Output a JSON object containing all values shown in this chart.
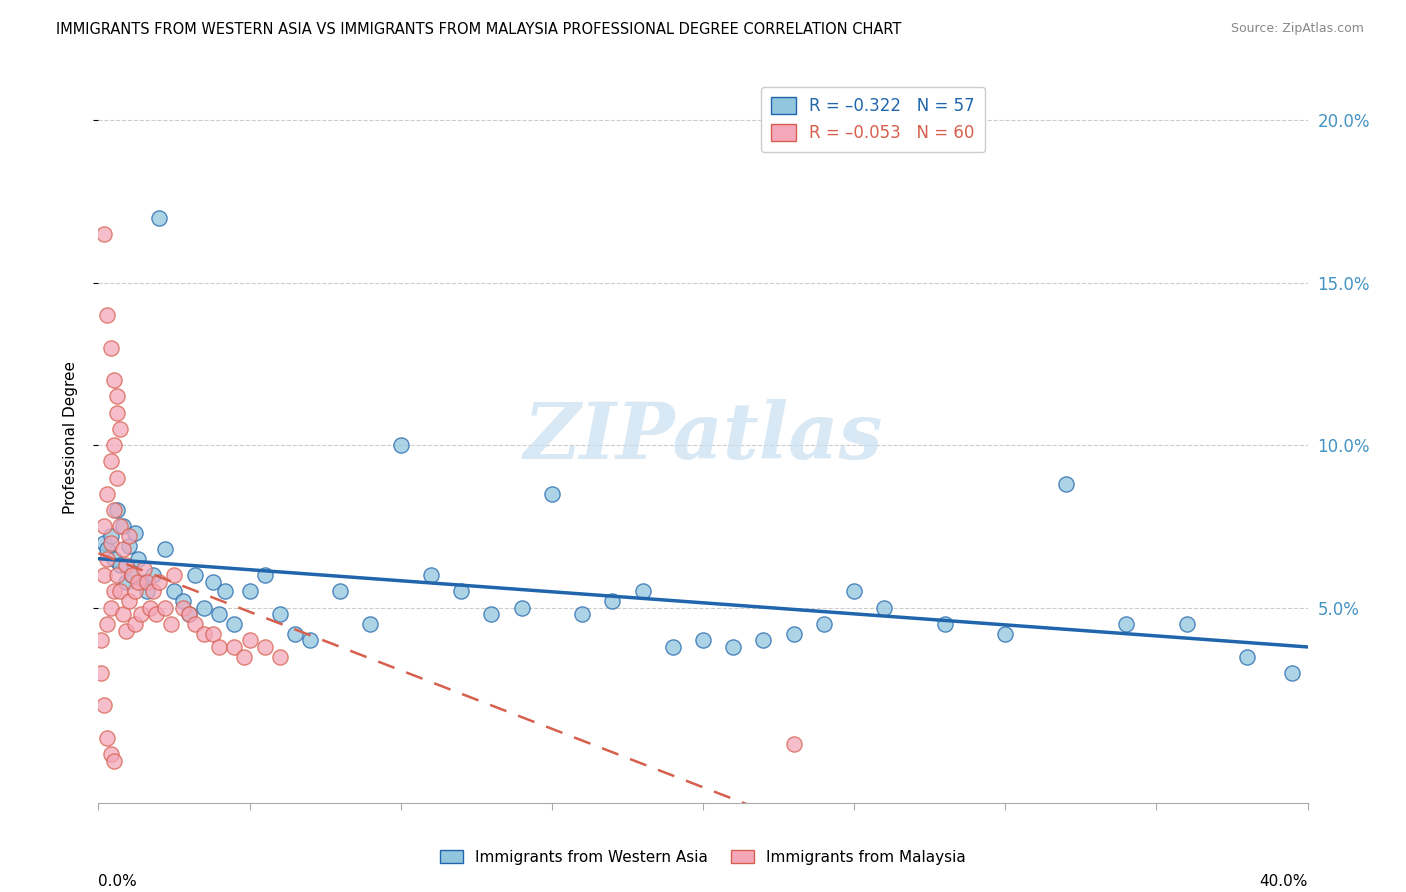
{
  "title": "IMMIGRANTS FROM WESTERN ASIA VS IMMIGRANTS FROM MALAYSIA PROFESSIONAL DEGREE CORRELATION CHART",
  "source": "Source: ZipAtlas.com",
  "ylabel": "Professional Degree",
  "right_yticks": [
    "5.0%",
    "10.0%",
    "15.0%",
    "20.0%"
  ],
  "right_ytick_vals": [
    0.05,
    0.1,
    0.15,
    0.2
  ],
  "legend_label1": "Immigrants from Western Asia",
  "legend_label2": "Immigrants from Malaysia",
  "color_blue": "#92c5de",
  "color_pink": "#f4a7b9",
  "color_blue_dark": "#2166ac",
  "color_pink_dark": "#d6604d",
  "xlim": [
    0.0,
    0.4
  ],
  "ylim": [
    -0.01,
    0.215
  ],
  "watermark": "ZIPatlas",
  "background_color": "#ffffff",
  "western_asia_x": [
    0.002,
    0.003,
    0.004,
    0.005,
    0.006,
    0.007,
    0.008,
    0.009,
    0.01,
    0.011,
    0.012,
    0.013,
    0.015,
    0.016,
    0.018,
    0.02,
    0.022,
    0.025,
    0.028,
    0.03,
    0.032,
    0.035,
    0.038,
    0.04,
    0.042,
    0.045,
    0.05,
    0.055,
    0.06,
    0.065,
    0.07,
    0.08,
    0.09,
    0.1,
    0.11,
    0.12,
    0.13,
    0.14,
    0.15,
    0.16,
    0.17,
    0.18,
    0.19,
    0.2,
    0.21,
    0.22,
    0.23,
    0.24,
    0.25,
    0.26,
    0.28,
    0.3,
    0.32,
    0.34,
    0.36,
    0.38,
    0.395
  ],
  "western_asia_y": [
    0.07,
    0.068,
    0.072,
    0.065,
    0.08,
    0.063,
    0.075,
    0.058,
    0.069,
    0.06,
    0.073,
    0.065,
    0.058,
    0.055,
    0.06,
    0.17,
    0.068,
    0.055,
    0.052,
    0.048,
    0.06,
    0.05,
    0.058,
    0.048,
    0.055,
    0.045,
    0.055,
    0.06,
    0.048,
    0.042,
    0.04,
    0.055,
    0.045,
    0.1,
    0.06,
    0.055,
    0.048,
    0.05,
    0.085,
    0.048,
    0.052,
    0.055,
    0.038,
    0.04,
    0.038,
    0.04,
    0.042,
    0.045,
    0.055,
    0.05,
    0.045,
    0.042,
    0.088,
    0.045,
    0.045,
    0.035,
    0.03
  ],
  "malaysia_x": [
    0.001,
    0.001,
    0.002,
    0.002,
    0.002,
    0.003,
    0.003,
    0.003,
    0.004,
    0.004,
    0.004,
    0.005,
    0.005,
    0.005,
    0.006,
    0.006,
    0.006,
    0.007,
    0.007,
    0.008,
    0.008,
    0.009,
    0.009,
    0.01,
    0.01,
    0.011,
    0.012,
    0.012,
    0.013,
    0.014,
    0.015,
    0.016,
    0.017,
    0.018,
    0.019,
    0.02,
    0.022,
    0.024,
    0.025,
    0.028,
    0.03,
    0.032,
    0.035,
    0.038,
    0.04,
    0.045,
    0.048,
    0.05,
    0.055,
    0.06,
    0.002,
    0.003,
    0.004,
    0.005,
    0.006,
    0.007,
    0.003,
    0.004,
    0.005,
    0.23
  ],
  "malaysia_y": [
    0.04,
    0.03,
    0.075,
    0.06,
    0.02,
    0.085,
    0.065,
    0.045,
    0.095,
    0.07,
    0.05,
    0.1,
    0.08,
    0.055,
    0.11,
    0.09,
    0.06,
    0.075,
    0.055,
    0.068,
    0.048,
    0.063,
    0.043,
    0.072,
    0.052,
    0.06,
    0.055,
    0.045,
    0.058,
    0.048,
    0.062,
    0.058,
    0.05,
    0.055,
    0.048,
    0.058,
    0.05,
    0.045,
    0.06,
    0.05,
    0.048,
    0.045,
    0.042,
    0.042,
    0.038,
    0.038,
    0.035,
    0.04,
    0.038,
    0.035,
    0.165,
    0.14,
    0.13,
    0.12,
    0.115,
    0.105,
    0.01,
    0.005,
    0.003,
    0.008
  ]
}
